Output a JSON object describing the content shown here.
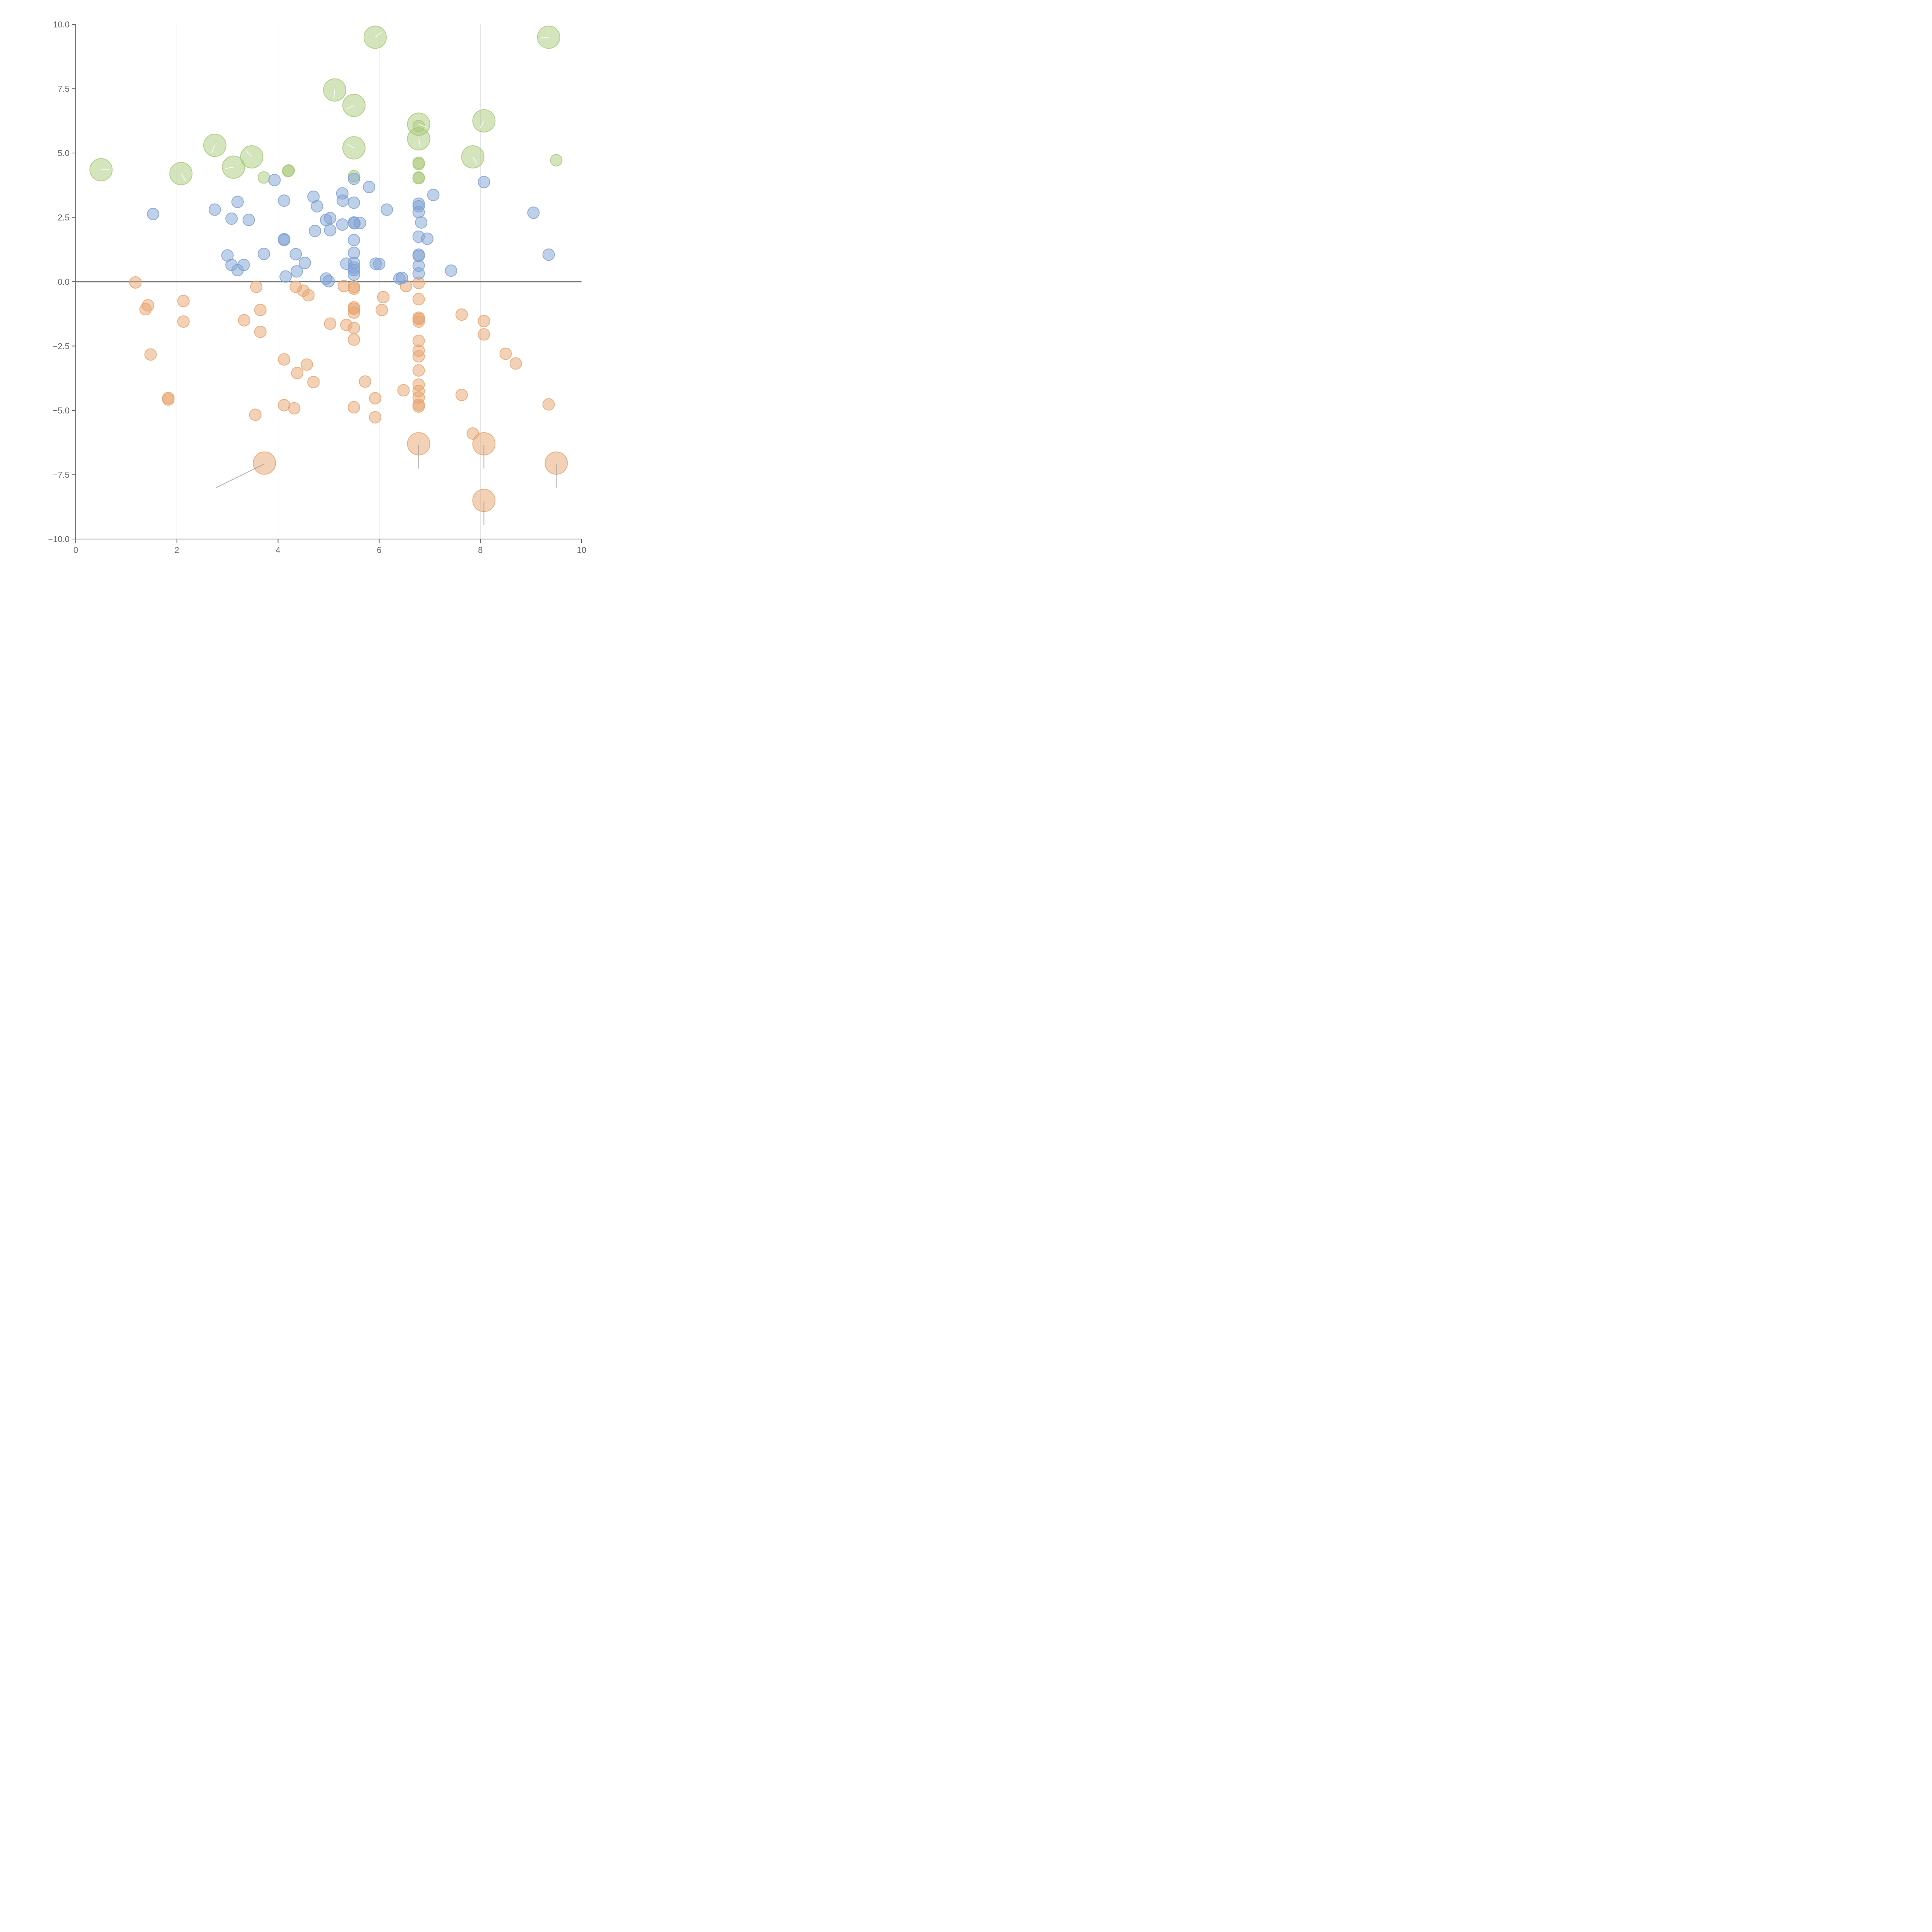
{
  "chart_data": {
    "type": "scatter",
    "title": "",
    "xlabel": "",
    "ylabel": "",
    "xlim": [
      0,
      10
    ],
    "ylim": [
      -10,
      10
    ],
    "x_ticks": [
      "0",
      "2",
      "4",
      "6",
      "8",
      "10"
    ],
    "y_ticks": [
      "−10.0",
      "−7.5",
      "−5.0",
      "−2.5",
      "0.0",
      "2.5",
      "5.0",
      "7.5",
      "10.0"
    ],
    "grid": "vertical",
    "zero_line": true,
    "colors": {
      "green": "#a9c97a",
      "blue": "#7fa1d4",
      "orange": "#e8a46e",
      "label_line_light": "#ffffff",
      "label_line_dark": "#999999"
    },
    "series": [
      {
        "color": "green",
        "points": [
          {
            "x": 0.5,
            "y": 4.35,
            "s": "lg"
          },
          {
            "x": 2.08,
            "y": 4.2,
            "s": "lg"
          },
          {
            "x": 2.75,
            "y": 5.3,
            "s": "lg"
          },
          {
            "x": 3.12,
            "y": 4.45,
            "s": "lg"
          },
          {
            "x": 3.48,
            "y": 4.85,
            "s": "lg"
          },
          {
            "x": 3.72,
            "y": 4.05,
            "s": "sm"
          },
          {
            "x": 4.2,
            "y": 4.3,
            "s": "sm"
          },
          {
            "x": 4.21,
            "y": 4.32,
            "s": "sm"
          },
          {
            "x": 5.12,
            "y": 7.45,
            "s": "lg"
          },
          {
            "x": 5.5,
            "y": 6.85,
            "s": "lg"
          },
          {
            "x": 5.5,
            "y": 5.2,
            "s": "lg"
          },
          {
            "x": 5.5,
            "y": 4.1,
            "s": "sm"
          },
          {
            "x": 5.92,
            "y": 9.5,
            "s": "lg"
          },
          {
            "x": 6.78,
            "y": 6.12,
            "s": "lg"
          },
          {
            "x": 6.78,
            "y": 5.55,
            "s": "lg"
          },
          {
            "x": 6.78,
            "y": 6.05,
            "s": "sm"
          },
          {
            "x": 6.78,
            "y": 4.62,
            "s": "sm"
          },
          {
            "x": 6.78,
            "y": 4.57,
            "s": "sm"
          },
          {
            "x": 6.78,
            "y": 4.05,
            "s": "sm"
          },
          {
            "x": 6.78,
            "y": 4.02,
            "s": "sm"
          },
          {
            "x": 7.85,
            "y": 4.85,
            "s": "lg"
          },
          {
            "x": 8.07,
            "y": 6.25,
            "s": "lg"
          },
          {
            "x": 9.35,
            "y": 9.5,
            "s": "lg"
          },
          {
            "x": 9.5,
            "y": 4.72,
            "s": "sm"
          }
        ]
      },
      {
        "color": "blue",
        "points": [
          {
            "x": 1.53,
            "y": 2.63
          },
          {
            "x": 2.75,
            "y": 2.8
          },
          {
            "x": 3.08,
            "y": 2.45
          },
          {
            "x": 3.2,
            "y": 3.1
          },
          {
            "x": 3.42,
            "y": 2.4
          },
          {
            "x": 3.0,
            "y": 1.02
          },
          {
            "x": 3.08,
            "y": 0.65
          },
          {
            "x": 3.2,
            "y": 0.45
          },
          {
            "x": 3.32,
            "y": 0.65
          },
          {
            "x": 3.72,
            "y": 1.08
          },
          {
            "x": 3.93,
            "y": 3.95
          },
          {
            "x": 4.12,
            "y": 3.15
          },
          {
            "x": 4.12,
            "y": 1.65
          },
          {
            "x": 4.12,
            "y": 1.62
          },
          {
            "x": 4.15,
            "y": 0.2
          },
          {
            "x": 4.35,
            "y": 1.07
          },
          {
            "x": 4.37,
            "y": 0.4
          },
          {
            "x": 4.53,
            "y": 0.73
          },
          {
            "x": 4.7,
            "y": 3.3
          },
          {
            "x": 4.73,
            "y": 1.97
          },
          {
            "x": 4.77,
            "y": 2.93
          },
          {
            "x": 4.95,
            "y": 2.4
          },
          {
            "x": 5.03,
            "y": 2.47
          },
          {
            "x": 5.03,
            "y": 2.0
          },
          {
            "x": 4.95,
            "y": 0.12
          },
          {
            "x": 5.0,
            "y": 0.02
          },
          {
            "x": 5.27,
            "y": 3.43
          },
          {
            "x": 5.28,
            "y": 3.15
          },
          {
            "x": 5.27,
            "y": 2.22
          },
          {
            "x": 5.35,
            "y": 0.7
          },
          {
            "x": 5.5,
            "y": 4.0
          },
          {
            "x": 5.5,
            "y": 3.07
          },
          {
            "x": 5.5,
            "y": 2.3
          },
          {
            "x": 5.51,
            "y": 2.27
          },
          {
            "x": 5.62,
            "y": 2.28
          },
          {
            "x": 5.5,
            "y": 1.62
          },
          {
            "x": 5.5,
            "y": 1.12
          },
          {
            "x": 5.5,
            "y": 0.73
          },
          {
            "x": 5.5,
            "y": 0.55
          },
          {
            "x": 5.5,
            "y": 0.45
          },
          {
            "x": 5.5,
            "y": 0.27
          },
          {
            "x": 5.8,
            "y": 3.68
          },
          {
            "x": 5.93,
            "y": 0.7
          },
          {
            "x": 6.0,
            "y": 0.69
          },
          {
            "x": 6.15,
            "y": 2.8
          },
          {
            "x": 6.4,
            "y": 0.12
          },
          {
            "x": 6.45,
            "y": 0.15
          },
          {
            "x": 6.78,
            "y": 3.03
          },
          {
            "x": 6.78,
            "y": 2.93
          },
          {
            "x": 6.78,
            "y": 2.7
          },
          {
            "x": 6.83,
            "y": 2.3
          },
          {
            "x": 6.78,
            "y": 1.75
          },
          {
            "x": 6.95,
            "y": 1.67
          },
          {
            "x": 6.78,
            "y": 1.05
          },
          {
            "x": 6.78,
            "y": 1.0
          },
          {
            "x": 6.78,
            "y": 0.62
          },
          {
            "x": 6.78,
            "y": 0.32
          },
          {
            "x": 7.07,
            "y": 3.37
          },
          {
            "x": 7.42,
            "y": 0.43
          },
          {
            "x": 8.07,
            "y": 3.87
          },
          {
            "x": 9.05,
            "y": 2.68
          },
          {
            "x": 9.35,
            "y": 1.05
          }
        ]
      },
      {
        "color": "orange",
        "points": [
          {
            "x": 1.18,
            "y": -0.03
          },
          {
            "x": 1.43,
            "y": -0.92
          },
          {
            "x": 1.38,
            "y": -1.07
          },
          {
            "x": 1.48,
            "y": -2.83
          },
          {
            "x": 1.83,
            "y": -4.52
          },
          {
            "x": 1.83,
            "y": -4.58
          },
          {
            "x": 2.13,
            "y": -0.75
          },
          {
            "x": 2.13,
            "y": -1.55
          },
          {
            "x": 3.33,
            "y": -1.5
          },
          {
            "x": 3.57,
            "y": -0.2
          },
          {
            "x": 3.65,
            "y": -1.1
          },
          {
            "x": 3.65,
            "y": -1.95
          },
          {
            "x": 3.55,
            "y": -5.17
          },
          {
            "x": 3.73,
            "y": -7.05,
            "s": "lg"
          },
          {
            "x": 4.12,
            "y": -3.02
          },
          {
            "x": 4.12,
            "y": -4.8
          },
          {
            "x": 4.35,
            "y": -0.2
          },
          {
            "x": 4.5,
            "y": -0.35
          },
          {
            "x": 4.6,
            "y": -0.53
          },
          {
            "x": 4.57,
            "y": -3.22
          },
          {
            "x": 4.38,
            "y": -3.55
          },
          {
            "x": 4.32,
            "y": -4.92
          },
          {
            "x": 4.7,
            "y": -3.9
          },
          {
            "x": 5.03,
            "y": -1.63
          },
          {
            "x": 5.3,
            "y": -0.17
          },
          {
            "x": 5.35,
            "y": -1.68
          },
          {
            "x": 5.5,
            "y": -0.2
          },
          {
            "x": 5.5,
            "y": -0.27
          },
          {
            "x": 5.5,
            "y": -1.0
          },
          {
            "x": 5.5,
            "y": -1.05
          },
          {
            "x": 5.5,
            "y": -1.2
          },
          {
            "x": 5.5,
            "y": -1.8
          },
          {
            "x": 5.5,
            "y": -2.25
          },
          {
            "x": 5.5,
            "y": -4.88
          },
          {
            "x": 5.72,
            "y": -3.88
          },
          {
            "x": 5.92,
            "y": -4.53
          },
          {
            "x": 5.92,
            "y": -5.27
          },
          {
            "x": 6.05,
            "y": -1.1
          },
          {
            "x": 6.08,
            "y": -0.6
          },
          {
            "x": 6.48,
            "y": -4.22
          },
          {
            "x": 6.53,
            "y": -0.17
          },
          {
            "x": 6.78,
            "y": -0.05
          },
          {
            "x": 6.78,
            "y": -0.68
          },
          {
            "x": 6.78,
            "y": -1.4
          },
          {
            "x": 6.78,
            "y": -1.45
          },
          {
            "x": 6.78,
            "y": -1.55
          },
          {
            "x": 6.78,
            "y": -2.3
          },
          {
            "x": 6.78,
            "y": -2.68
          },
          {
            "x": 6.78,
            "y": -2.9
          },
          {
            "x": 6.78,
            "y": -3.45
          },
          {
            "x": 6.78,
            "y": -4.0
          },
          {
            "x": 6.78,
            "y": -4.25
          },
          {
            "x": 6.78,
            "y": -4.5
          },
          {
            "x": 6.78,
            "y": -4.78
          },
          {
            "x": 6.78,
            "y": -4.85
          },
          {
            "x": 6.78,
            "y": -6.3,
            "s": "lg"
          },
          {
            "x": 7.63,
            "y": -1.28
          },
          {
            "x": 7.63,
            "y": -4.4
          },
          {
            "x": 7.85,
            "y": -5.9
          },
          {
            "x": 8.07,
            "y": -1.53
          },
          {
            "x": 8.07,
            "y": -2.05
          },
          {
            "x": 8.07,
            "y": -6.3,
            "s": "lg"
          },
          {
            "x": 8.07,
            "y": -8.5,
            "s": "lg"
          },
          {
            "x": 8.5,
            "y": -2.8
          },
          {
            "x": 8.7,
            "y": -3.18
          },
          {
            "x": 9.35,
            "y": -4.77
          },
          {
            "x": 9.5,
            "y": -7.05,
            "s": "lg"
          }
        ]
      }
    ]
  }
}
